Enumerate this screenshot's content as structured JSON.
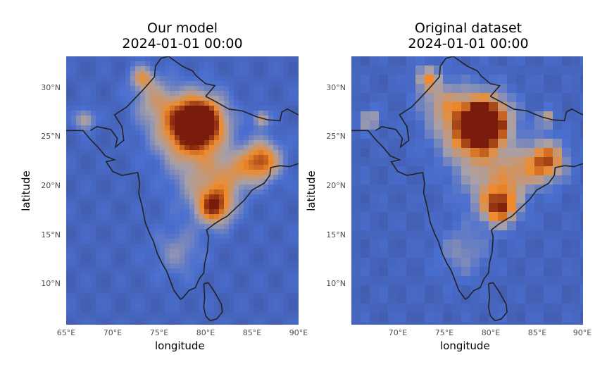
{
  "panels": [
    {
      "title_line1": "Our model",
      "title_line2": "2024-01-01 00:00",
      "xlabel": "longitude",
      "ylabel": "latitude",
      "xticks": [
        "65°E",
        "70°E",
        "75°E",
        "80°E",
        "85°E",
        "90°E"
      ],
      "yticks": [
        "30°N",
        "25°N",
        "20°N",
        "15°N",
        "10°N"
      ]
    },
    {
      "title_line1": "Original dataset",
      "title_line2": "2024-01-01 00:00",
      "xlabel": "longitude",
      "ylabel": "latitude",
      "xticks": [
        "70°E",
        "75°E",
        "80°E",
        "85°E",
        "90°E"
      ],
      "yticks": [
        "30°N",
        "25°N",
        "20°N",
        "15°N",
        "10°N"
      ]
    }
  ],
  "chart_data": {
    "type": "heatmap",
    "xlim": [
      65,
      90
    ],
    "ylim": [
      5.5,
      33
    ],
    "colorscale": [
      "#3a4a8c",
      "#4a6fd0",
      "#a8a0a8",
      "#f08a2a",
      "#7a1c0c"
    ],
    "coastline_color": "#222222"
  }
}
